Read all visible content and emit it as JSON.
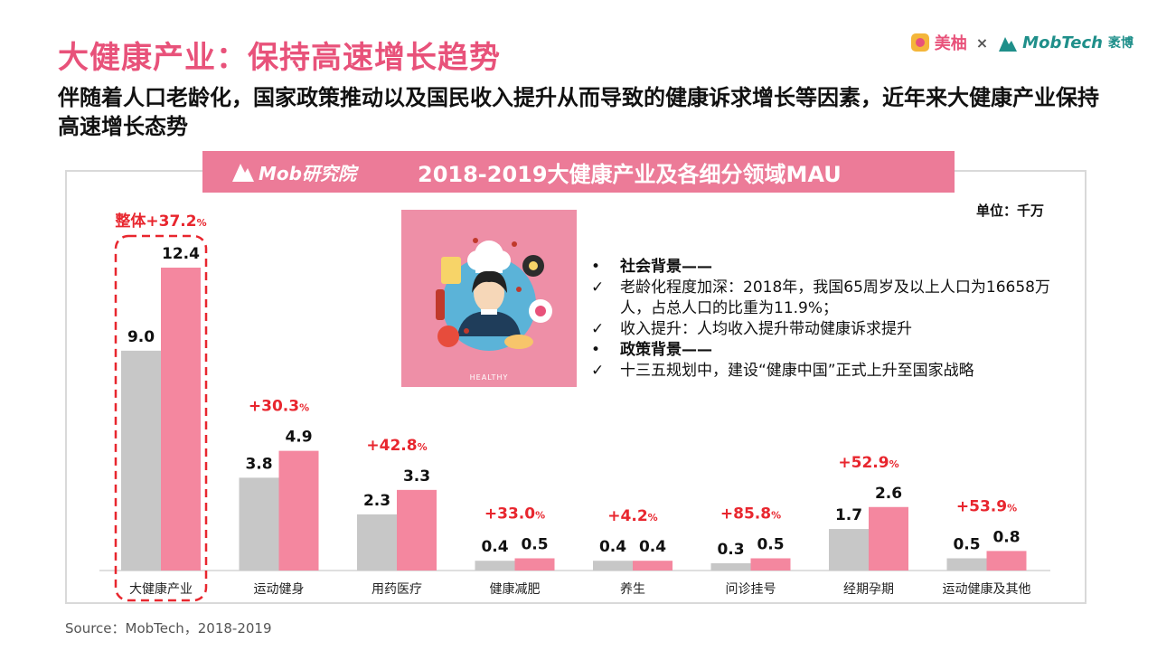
{
  "header": {
    "title": "大健康产业：保持高速增长趋势",
    "subtitle": "伴随着人口老龄化，国家政策推动以及国民收入提升从而导致的健康诉求增长等因素，近年来大健康产业保持高速增长态势"
  },
  "brand": {
    "meiyou": "美柚",
    "times": "×",
    "mobtech": "MobTech",
    "mobtech_sub": "袤博"
  },
  "chart_header": {
    "logo_text": "Mob研究院",
    "title": "2018-2019大健康产业及各细分领域MAU"
  },
  "unit": "单位：千万",
  "image": {
    "caption": "HEALTHY"
  },
  "notes": [
    {
      "mark": "•",
      "text": "社会背景——",
      "bold": true
    },
    {
      "mark": "✓",
      "text": "老龄化程度加深：2018年，我国65周岁及以上人口为16658万人，占总人口的比重为11.9%；",
      "bold": false
    },
    {
      "mark": "✓",
      "text": "收入提升：人均收入提升带动健康诉求提升",
      "bold": false
    },
    {
      "mark": "•",
      "text": "政策背景——",
      "bold": true
    },
    {
      "mark": "✓",
      "text": "十三五规划中，建设“健康中国”正式上升至国家战略",
      "bold": false
    }
  ],
  "source": "Source：MobTech，2018-2019",
  "colors": {
    "title": "#e8527a",
    "bar_2018": "#c7c7c7",
    "bar_2019": "#f4879f",
    "growth_label": "#e8262e",
    "highlight_border": "#e8262e"
  },
  "chart_data": {
    "type": "bar",
    "categories": [
      "大健康产业",
      "运动健身",
      "用药医疗",
      "健康减肥",
      "养生",
      "问诊挂号",
      "经期孕期",
      "运动健康及其他"
    ],
    "series": [
      {
        "values": [
          9.0,
          3.8,
          2.3,
          0.4,
          0.4,
          0.3,
          1.7,
          0.5
        ]
      },
      {
        "values": [
          12.4,
          4.9,
          3.3,
          0.5,
          0.4,
          0.5,
          2.6,
          0.8
        ]
      }
    ],
    "value_labels": [
      [
        "9.0",
        "3.8",
        "2.3",
        "0.4",
        "0.4",
        "0.3",
        "1.7",
        "0.5"
      ],
      [
        "12.4",
        "4.9",
        "3.3",
        "0.5",
        "0.4",
        "0.5",
        "2.6",
        "0.8"
      ]
    ],
    "growth": [
      {
        "prefix": "整体",
        "value": "+37.2",
        "suffix": "%"
      },
      {
        "prefix": "",
        "value": "+30.3",
        "suffix": "%"
      },
      {
        "prefix": "",
        "value": "+42.8",
        "suffix": "%"
      },
      {
        "prefix": "",
        "value": "+33.0",
        "suffix": "%"
      },
      {
        "prefix": "",
        "value": "+4.2",
        "suffix": "%"
      },
      {
        "prefix": "",
        "value": "+85.8",
        "suffix": "%"
      },
      {
        "prefix": "",
        "value": "+52.9",
        "suffix": "%"
      },
      {
        "prefix": "",
        "value": "+53.9",
        "suffix": "%"
      }
    ],
    "highlight_index": 0,
    "ylim": [
      0,
      12.4
    ],
    "legend": "none",
    "grid": false
  }
}
